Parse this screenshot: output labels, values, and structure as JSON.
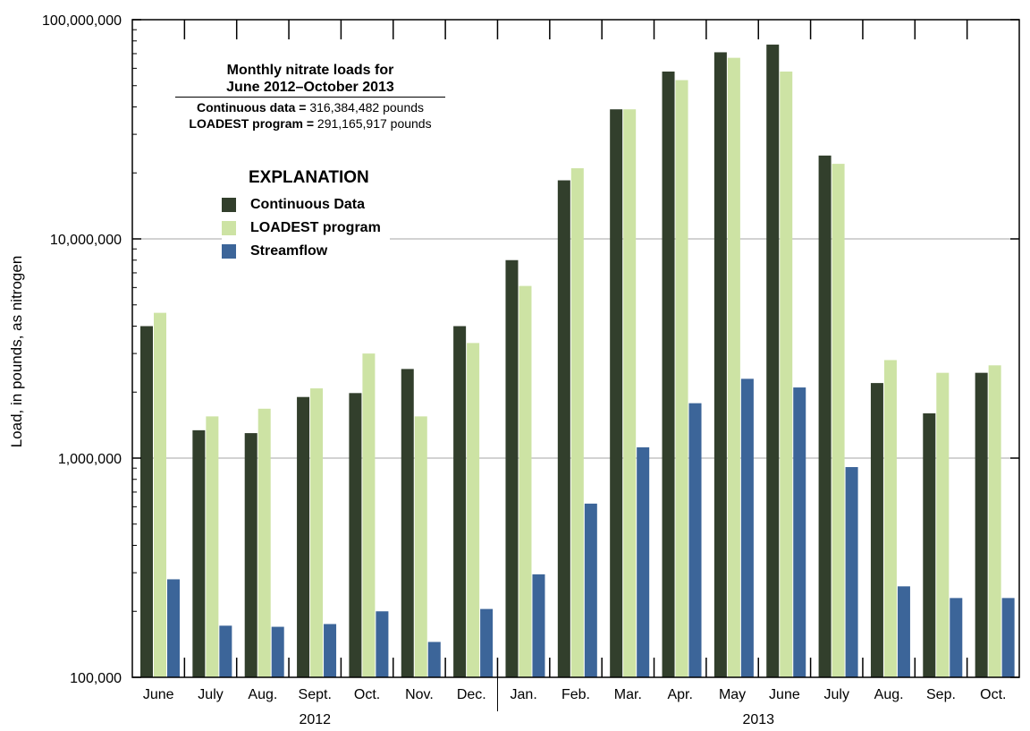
{
  "colors": {
    "continuous": "#323f2c",
    "loadest": "#cde3a4",
    "streamflow": "#3c6599",
    "grid": "#a6a6a6",
    "axis": "#000000"
  },
  "info_box": {
    "title_line1": "Monthly nitrate loads for",
    "title_line2": "June 2012–October 2013",
    "row1_label": "Continuous data =",
    "row1_value": "316,384,482 pounds",
    "row2_label": "LOADEST program =",
    "row2_value": "291,165,917 pounds"
  },
  "legend": {
    "title": "EXPLANATION",
    "items": [
      {
        "label": "Continuous Data"
      },
      {
        "label": "LOADEST program"
      },
      {
        "label": "Streamflow"
      }
    ]
  },
  "chart_data": {
    "type": "bar",
    "scale": "log",
    "ylabel": "Load, in pounds, as nitrogen",
    "ylim": [
      100000,
      100000000
    ],
    "yticks": [
      100000,
      1000000,
      10000000,
      100000000
    ],
    "ytick_labels": [
      "100,000",
      "1,000,000",
      "10,000,000",
      "100,000,000"
    ],
    "grid": true,
    "legend_position": "top-left",
    "categories": [
      "June",
      "July",
      "Aug.",
      "Sept.",
      "Oct.",
      "Nov.",
      "Dec.",
      "Jan.",
      "Feb.",
      "Mar.",
      "Apr.",
      "May",
      "June",
      "July",
      "Aug.",
      "Sep.",
      "Oct."
    ],
    "year_groups": [
      {
        "label": "2012",
        "count": 7
      },
      {
        "label": "2013",
        "count": 10
      }
    ],
    "series": [
      {
        "name": "Continuous Data",
        "values": [
          4000000,
          1340000,
          1300000,
          1900000,
          1980000,
          2550000,
          4000000,
          8000000,
          18500000,
          39000000,
          58000000,
          71000000,
          77000000,
          24000000,
          2200000,
          1600000,
          2450000
        ]
      },
      {
        "name": "LOADEST program",
        "values": [
          4600000,
          1550000,
          1680000,
          2080000,
          3000000,
          1550000,
          3350000,
          6100000,
          21000000,
          39000000,
          53000000,
          67000000,
          58000000,
          22000000,
          2800000,
          2450000,
          2650000
        ]
      },
      {
        "name": "Streamflow",
        "values": [
          280000,
          172000,
          170000,
          175000,
          200000,
          145000,
          205000,
          295000,
          620000,
          1120000,
          1780000,
          2300000,
          2100000,
          910000,
          260000,
          230000,
          230000
        ]
      }
    ]
  }
}
